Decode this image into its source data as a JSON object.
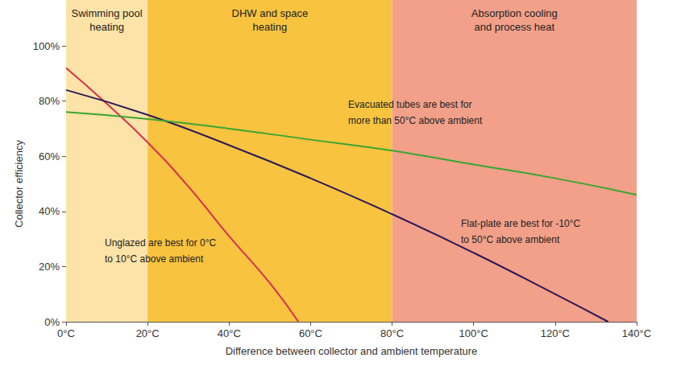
{
  "chart_data": {
    "type": "line",
    "xlabel": "Difference between collector and ambient temperature",
    "ylabel": "Collector efficiency",
    "xlim": [
      0,
      140
    ],
    "xticks": [
      {
        "value": 0,
        "label": "0°C"
      },
      {
        "value": 20,
        "label": "20°C"
      },
      {
        "value": 40,
        "label": "40°C"
      },
      {
        "value": 60,
        "label": "60°C"
      },
      {
        "value": 80,
        "label": "80°C"
      },
      {
        "value": 100,
        "label": "100°C"
      },
      {
        "value": 120,
        "label": "120°C"
      },
      {
        "value": 140,
        "label": "140°C"
      }
    ],
    "ylim": [
      0,
      100
    ],
    "yticks": [
      {
        "value": 0,
        "label": "0%"
      },
      {
        "value": 20,
        "label": "20%"
      },
      {
        "value": 40,
        "label": "40%"
      },
      {
        "value": 60,
        "label": "60%"
      },
      {
        "value": 80,
        "label": "80%"
      },
      {
        "value": 100,
        "label": "100%"
      }
    ],
    "grid": false,
    "bands": [
      {
        "label": "Swimming pool\nheating",
        "from": 0,
        "to": 20,
        "color": "#fde3a7"
      },
      {
        "label": "DHW and space\nheating",
        "from": 20,
        "to": 80,
        "color": "#f8c33f"
      },
      {
        "label": "Absorption cooling\nand process heat",
        "from": 80,
        "to": 140,
        "color": "#f2a089"
      }
    ],
    "annotations": [
      {
        "text": "Evacuated tubes are best for\nmore than 50°C above ambient"
      },
      {
        "text": "Flat-plate are best for -10°C\nto 50°C above ambient"
      },
      {
        "text": "Unglazed are best for 0°C\nto 10°C above ambient"
      }
    ],
    "series": [
      {
        "color": "#d8304f",
        "x": [
          0,
          10,
          20,
          30,
          40,
          50,
          57
        ],
        "values": [
          92,
          79,
          65,
          49,
          31,
          14,
          0
        ]
      },
      {
        "color": "#2b1a5a",
        "x": [
          0,
          20,
          40,
          60,
          80,
          100,
          120,
          133
        ],
        "values": [
          84,
          75,
          64,
          52,
          39,
          25,
          10,
          0
        ]
      },
      {
        "color": "#3aa631",
        "x": [
          0,
          20,
          40,
          60,
          80,
          100,
          120,
          140
        ],
        "values": [
          76,
          73.5,
          70,
          66,
          62,
          57,
          52,
          46
        ]
      }
    ]
  }
}
